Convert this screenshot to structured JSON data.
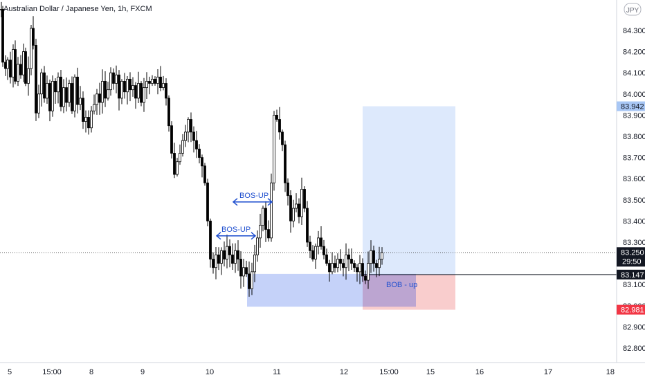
{
  "header": {
    "title": "Australian Dollar / Japanese Yen, 1h, FXCM"
  },
  "currency_badge": "JPY",
  "colors": {
    "up": "#ffffff",
    "down": "#000000",
    "wick": "#000000",
    "bos": "#1f4fcf",
    "demand_zone": "#6f8ef0",
    "target_zone": "#cfe0fb",
    "stop_zone": "#f8c4c4",
    "target_tag": "#a8c7f5",
    "last_tag": "#131722",
    "entry_tag": "#131722",
    "stop_tag": "#f23645"
  },
  "price_scale": {
    "ticks": [
      "84.300",
      "84.200",
      "84.100",
      "84.000",
      "83.900",
      "83.800",
      "83.700",
      "83.600",
      "83.500",
      "83.400",
      "83.300",
      "83.100",
      "83.000",
      "82.900",
      "82.800"
    ],
    "tags": {
      "target": "83.942",
      "last_price": "83.250",
      "countdown": "29:50",
      "entry": "83.147",
      "stop": "82.981"
    }
  },
  "time_scale": {
    "labels": [
      "5",
      "15:00",
      "8",
      "9",
      "10",
      "11",
      "12",
      "15:00",
      "15",
      "16",
      "17",
      "18"
    ]
  },
  "annotations": {
    "bos_1": "BOS-UP",
    "bos_2": "BOS-UP",
    "bob": "BOB - up"
  },
  "chart_data": {
    "type": "candlestick",
    "title": "Australian Dollar / Japanese Yen, 1h, FXCM",
    "instrument": "AUD/JPY",
    "timeframe": "1h",
    "y_range": [
      82.71,
      84.41
    ],
    "x_tick_labels": [
      "5",
      "15:00",
      "8",
      "9",
      "10",
      "11",
      "12",
      "15:00",
      "15",
      "16",
      "17",
      "18"
    ],
    "grid": false,
    "close_path": [
      [
        0,
        84.4
      ],
      [
        2,
        84.15
      ],
      [
        6,
        84.12
      ],
      [
        9,
        84.16
      ],
      [
        13,
        84.08
      ],
      [
        17,
        84.21
      ],
      [
        20,
        84.06
      ],
      [
        24,
        84.14
      ],
      [
        28,
        84.09
      ],
      [
        32,
        84.2
      ],
      [
        35,
        84.05
      ],
      [
        39,
        84.12
      ],
      [
        43,
        84.31
      ],
      [
        46,
        84.23
      ],
      [
        50,
        83.91
      ],
      [
        54,
        84.0
      ],
      [
        58,
        84.1
      ],
      [
        62,
        83.98
      ],
      [
        66,
        84.05
      ],
      [
        70,
        83.92
      ],
      [
        74,
        84.06
      ],
      [
        78,
        84.01
      ],
      [
        82,
        84.08
      ],
      [
        86,
        83.94
      ],
      [
        90,
        84.03
      ],
      [
        94,
        83.96
      ],
      [
        98,
        84.05
      ],
      [
        102,
        83.92
      ],
      [
        106,
        84.08
      ],
      [
        110,
        83.95
      ],
      [
        114,
        83.98
      ],
      [
        118,
        83.87
      ],
      [
        122,
        83.89
      ],
      [
        126,
        83.84
      ],
      [
        130,
        83.92
      ],
      [
        134,
        83.95
      ],
      [
        138,
        84.0
      ],
      [
        142,
        83.96
      ],
      [
        146,
        84.06
      ],
      [
        150,
        83.98
      ],
      [
        154,
        84.02
      ],
      [
        158,
        84.1
      ],
      [
        162,
        84.05
      ],
      [
        166,
        84.09
      ],
      [
        170,
        83.98
      ],
      [
        174,
        84.06
      ],
      [
        178,
        84.01
      ],
      [
        182,
        84.07
      ],
      [
        186,
        84.02
      ],
      [
        190,
        84.04
      ],
      [
        194,
        83.98
      ],
      [
        198,
        84.05
      ],
      [
        202,
        83.96
      ],
      [
        206,
        84.03
      ],
      [
        210,
        84.06
      ],
      [
        214,
        84.05
      ],
      [
        218,
        84.07
      ],
      [
        222,
        84.05
      ],
      [
        226,
        84.08
      ],
      [
        230,
        84.03
      ],
      [
        234,
        84.05
      ],
      [
        238,
        83.98
      ],
      [
        242,
        83.85
      ],
      [
        246,
        83.72
      ],
      [
        250,
        83.62
      ],
      [
        254,
        83.68
      ],
      [
        258,
        83.72
      ],
      [
        262,
        83.78
      ],
      [
        266,
        83.82
      ],
      [
        270,
        83.88
      ],
      [
        274,
        83.82
      ],
      [
        278,
        83.78
      ],
      [
        282,
        83.74
      ],
      [
        286,
        83.7
      ],
      [
        290,
        83.66
      ],
      [
        294,
        83.58
      ],
      [
        298,
        83.4
      ],
      [
        302,
        83.22
      ],
      [
        306,
        83.18
      ],
      [
        310,
        83.24
      ],
      [
        314,
        83.2
      ],
      [
        318,
        83.26
      ],
      [
        322,
        83.22
      ],
      [
        326,
        83.28
      ],
      [
        330,
        83.24
      ],
      [
        334,
        83.2
      ],
      [
        338,
        83.26
      ],
      [
        342,
        83.22
      ],
      [
        346,
        83.14
      ],
      [
        350,
        83.18
      ],
      [
        354,
        83.15
      ],
      [
        358,
        83.08
      ],
      [
        362,
        83.16
      ],
      [
        366,
        83.24
      ],
      [
        370,
        83.32
      ],
      [
        374,
        83.38
      ],
      [
        378,
        83.46
      ],
      [
        382,
        83.36
      ],
      [
        386,
        83.32
      ],
      [
        390,
        83.58
      ],
      [
        394,
        83.9
      ],
      [
        398,
        83.88
      ],
      [
        402,
        83.82
      ],
      [
        406,
        83.76
      ],
      [
        410,
        83.58
      ],
      [
        414,
        83.52
      ],
      [
        418,
        83.4
      ],
      [
        422,
        83.46
      ],
      [
        426,
        83.48
      ],
      [
        430,
        83.42
      ],
      [
        434,
        83.55
      ],
      [
        438,
        83.46
      ],
      [
        442,
        83.3
      ],
      [
        446,
        83.26
      ],
      [
        450,
        83.22
      ],
      [
        454,
        83.28
      ],
      [
        458,
        83.32
      ],
      [
        462,
        83.28
      ],
      [
        466,
        83.24
      ],
      [
        470,
        83.2
      ],
      [
        474,
        83.16
      ],
      [
        478,
        83.2
      ],
      [
        482,
        83.18
      ],
      [
        486,
        83.22
      ],
      [
        490,
        83.2
      ],
      [
        494,
        83.18
      ],
      [
        498,
        83.24
      ],
      [
        502,
        83.22
      ],
      [
        506,
        83.2
      ],
      [
        510,
        83.18
      ],
      [
        514,
        83.16
      ],
      [
        518,
        83.2
      ],
      [
        522,
        83.14
      ],
      [
        526,
        83.12
      ],
      [
        530,
        83.2
      ],
      [
        534,
        83.26
      ],
      [
        538,
        83.2
      ],
      [
        542,
        83.18
      ],
      [
        546,
        83.22
      ],
      [
        550,
        83.25
      ]
    ],
    "annotations": [
      {
        "type": "bos",
        "label": "BOS-UP",
        "level": 83.33
      },
      {
        "type": "bos",
        "label": "BOS-UP",
        "level": 83.49
      },
      {
        "type": "demand_zone",
        "top": 83.15,
        "bottom": 82.995
      },
      {
        "type": "long_position",
        "entry": 83.147,
        "target": 83.942,
        "stop": 82.981,
        "label": "BOB - up"
      }
    ],
    "last_price": 83.25
  }
}
